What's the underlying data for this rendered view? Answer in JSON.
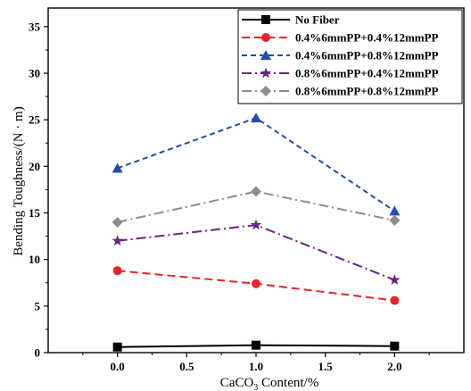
{
  "chart_data": {
    "type": "line",
    "xlabel": "CaCO",
    "xlabel_sub": "3",
    "xlabel_suffix": " Content/%",
    "ylabel": "Bending Toughness/(N · m)",
    "xlim": [
      -0.5,
      2.5
    ],
    "ylim": [
      0,
      37
    ],
    "xticks": [
      0.0,
      0.5,
      1.0,
      1.5,
      2.0
    ],
    "xtick_labels": [
      "0.0",
      "0.5",
      "1.0",
      "1.5",
      "2.0"
    ],
    "yticks": [
      0,
      5,
      10,
      15,
      20,
      25,
      30,
      35
    ],
    "ytick_labels": [
      "0",
      "5",
      "10",
      "15",
      "20",
      "25",
      "30",
      "35"
    ],
    "grid": false,
    "legend_position": "top-right",
    "x": [
      0.0,
      1.0,
      2.0
    ],
    "series": [
      {
        "name": "No Fiber",
        "values": [
          0.6,
          0.8,
          0.7
        ],
        "color": "#000000",
        "marker": "square",
        "dash": "solid"
      },
      {
        "name": "0.4%6mmPP+0.4%12mmPP",
        "values": [
          8.8,
          7.4,
          5.6
        ],
        "color": "#e8232a",
        "marker": "circle",
        "dash": "dash"
      },
      {
        "name": "0.4%6mmPP+0.8%12mmPP",
        "values": [
          19.8,
          25.2,
          15.2
        ],
        "color": "#1f4fa8",
        "marker": "triangle",
        "dash": "shortdash"
      },
      {
        "name": "0.8%6mmPP+0.4%12mmPP",
        "values": [
          12.0,
          13.7,
          7.8
        ],
        "color": "#6a2482",
        "marker": "star",
        "dash": "dashdot"
      },
      {
        "name": "0.8%6mmPP+0.8%12mmPP",
        "values": [
          14.0,
          17.3,
          14.2
        ],
        "color": "#8c8c8c",
        "marker": "diamond",
        "dash": "dashdot"
      }
    ]
  }
}
